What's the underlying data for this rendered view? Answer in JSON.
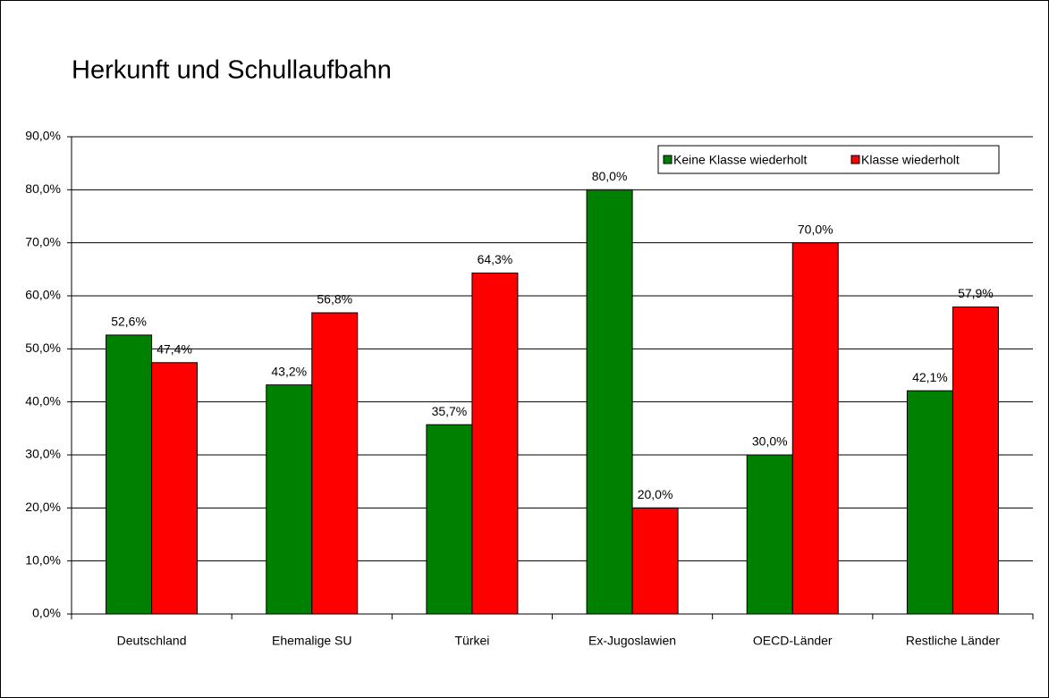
{
  "chart_data": {
    "type": "bar",
    "title": "Herkunft und Schullaufbahn",
    "categories": [
      "Deutschland",
      "Ehemalige SU",
      "Türkei",
      "Ex-Jugoslawien",
      "OECD-Länder",
      "Restliche Länder"
    ],
    "series": [
      {
        "name": "Keine Klasse wiederholt",
        "color": "#008000",
        "values": [
          52.6,
          43.2,
          35.7,
          80.0,
          30.0,
          42.1
        ],
        "value_labels": [
          "52,6%",
          "43,2%",
          "35,7%",
          "80,0%",
          "30,0%",
          "42,1%"
        ]
      },
      {
        "name": "Klasse wiederholt",
        "color": "#ff0000",
        "values": [
          47.4,
          56.8,
          64.3,
          20.0,
          70.0,
          57.9
        ],
        "value_labels": [
          "47,4%",
          "56,8%",
          "64,3%",
          "20,0%",
          "70,0%",
          "57,9%"
        ]
      }
    ],
    "ylim": [
      0,
      90
    ],
    "yticks": [
      {
        "value": 0,
        "label": "0,0%"
      },
      {
        "value": 10,
        "label": "10,0%"
      },
      {
        "value": 20,
        "label": "20,0%"
      },
      {
        "value": 30,
        "label": "30,0%"
      },
      {
        "value": 40,
        "label": "40,0%"
      },
      {
        "value": 50,
        "label": "50,0%"
      },
      {
        "value": 60,
        "label": "60,0%"
      },
      {
        "value": 70,
        "label": "70,0%"
      },
      {
        "value": 80,
        "label": "80,0%"
      },
      {
        "value": 90,
        "label": "90,0%"
      }
    ],
    "grid": true,
    "legend": "top-right"
  }
}
